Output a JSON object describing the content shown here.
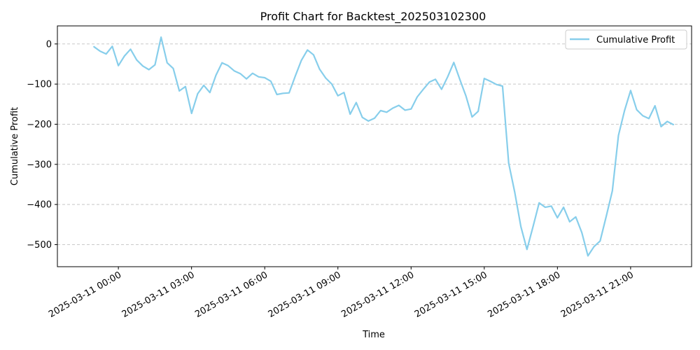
{
  "chart_data": {
    "type": "line",
    "title": "Profit Chart for Backtest_202503102300",
    "xlabel": "Time",
    "ylabel": "Cumulative Profit",
    "xlim": [
      -2.5,
      23.5
    ],
    "ylim": [
      -555,
      45
    ],
    "grid": "y-dashed",
    "legend_position": "top-right",
    "x_ticks": [
      {
        "value": 0,
        "label": "2025-03-11 00:00"
      },
      {
        "value": 3,
        "label": "2025-03-11 03:00"
      },
      {
        "value": 6,
        "label": "2025-03-11 06:00"
      },
      {
        "value": 9,
        "label": "2025-03-11 09:00"
      },
      {
        "value": 12,
        "label": "2025-03-11 12:00"
      },
      {
        "value": 15,
        "label": "2025-03-11 15:00"
      },
      {
        "value": 18,
        "label": "2025-03-11 18:00"
      },
      {
        "value": 21,
        "label": "2025-03-11 21:00"
      }
    ],
    "y_ticks": [
      {
        "value": 0,
        "label": "0"
      },
      {
        "value": -100,
        "label": "−100"
      },
      {
        "value": -200,
        "label": "−200"
      },
      {
        "value": -300,
        "label": "−300"
      },
      {
        "value": -400,
        "label": "−400"
      },
      {
        "value": -500,
        "label": "−500"
      }
    ],
    "series": [
      {
        "name": "Cumulative Profit",
        "color": "#87ceeb",
        "x": [
          -1.0,
          -0.75,
          -0.5,
          -0.25,
          0.0,
          0.25,
          0.5,
          0.75,
          1.0,
          1.25,
          1.5,
          1.75,
          2.0,
          2.25,
          2.5,
          2.75,
          3.0,
          3.25,
          3.5,
          3.75,
          4.0,
          4.25,
          4.5,
          4.75,
          5.0,
          5.25,
          5.5,
          5.75,
          6.0,
          6.25,
          6.5,
          6.75,
          7.0,
          7.25,
          7.5,
          7.75,
          8.0,
          8.25,
          8.5,
          8.75,
          9.0,
          9.25,
          9.5,
          9.75,
          10.0,
          10.25,
          10.5,
          10.75,
          11.0,
          11.25,
          11.5,
          11.75,
          12.0,
          12.25,
          12.5,
          12.75,
          13.0,
          13.25,
          13.5,
          13.75,
          14.0,
          14.25,
          14.5,
          14.75,
          15.0,
          15.25,
          15.5,
          15.75,
          16.0,
          16.25,
          16.5,
          16.75,
          17.0,
          17.25,
          17.5,
          17.75,
          18.0,
          18.25,
          18.5,
          18.75,
          19.0,
          19.25,
          19.5,
          19.75,
          20.0,
          20.25,
          20.5,
          20.75,
          21.0,
          21.25,
          21.5,
          21.75,
          22.0,
          22.25,
          22.5,
          22.75
        ],
        "y": [
          -7,
          -18,
          -25,
          -6,
          -54,
          -30,
          -13,
          -40,
          -55,
          -64,
          -52,
          17,
          -47,
          -61,
          -117,
          -106,
          -173,
          -124,
          -103,
          -121,
          -78,
          -47,
          -54,
          -67,
          -74,
          -87,
          -73,
          -82,
          -84,
          -93,
          -126,
          -123,
          -122,
          -80,
          -41,
          -15,
          -27,
          -63,
          -85,
          -100,
          -129,
          -121,
          -175,
          -146,
          -183,
          -192,
          -185,
          -166,
          -170,
          -160,
          -153,
          -165,
          -162,
          -132,
          -113,
          -95,
          -88,
          -113,
          -82,
          -46,
          -89,
          -130,
          -182,
          -168,
          -86,
          -93,
          -101,
          -105,
          -297,
          -370,
          -455,
          -512,
          -455,
          -396,
          -407,
          -404,
          -433,
          -407,
          -443,
          -431,
          -470,
          -528,
          -505,
          -491,
          -430,
          -366,
          -228,
          -166,
          -116,
          -164,
          -179,
          -186,
          -154,
          -206,
          -193,
          -201
        ]
      }
    ]
  }
}
